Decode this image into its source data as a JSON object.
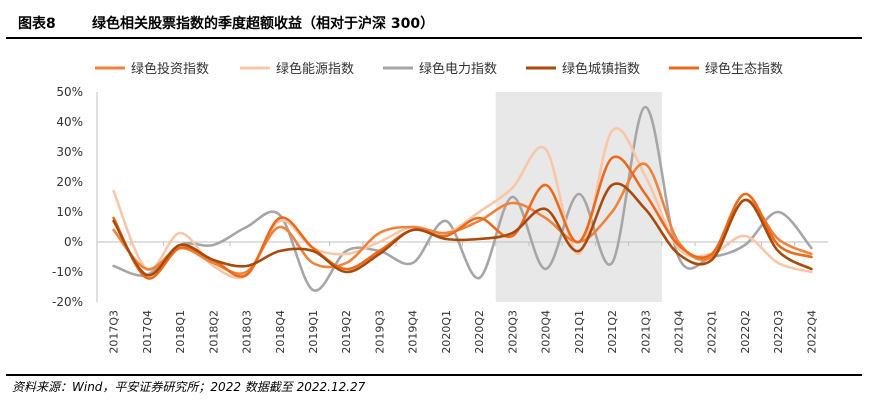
{
  "figure": {
    "number": "图表8",
    "title": "绿色相关股票指数的季度超额收益（相对于沪深 300）",
    "source": "资料来源：Wind，平安证券研究所；2022 数据截至 2022.12.27"
  },
  "chart_data": {
    "type": "line",
    "title": "",
    "xlabel": "",
    "ylabel": "",
    "ylim": [
      -20,
      50
    ],
    "y_ticks": [
      "50%",
      "40%",
      "30%",
      "20%",
      "10%",
      "0%",
      "-10%",
      "-20%"
    ],
    "y_tick_values": [
      50,
      40,
      30,
      20,
      10,
      0,
      -10,
      -20
    ],
    "x": [
      "2017Q3",
      "2017Q4",
      "2018Q1",
      "2018Q2",
      "2018Q3",
      "2018Q4",
      "2019Q1",
      "2019Q2",
      "2019Q3",
      "2019Q4",
      "2020Q1",
      "2020Q2",
      "2020Q3",
      "2020Q4",
      "2021Q1",
      "2021Q2",
      "2021Q3",
      "2021Q4",
      "2022Q1",
      "2022Q2",
      "2022Q3",
      "2022Q4"
    ],
    "grid": false,
    "legend_position": "top",
    "shaded_range": [
      "2020Q3",
      "2021Q3"
    ],
    "shade_color": "#e8e8e8",
    "series": [
      {
        "name": "绿色投资指数",
        "color": "#f0823c",
        "values": [
          4,
          -9,
          -2,
          -7,
          -10,
          5,
          -7,
          -7,
          3,
          5,
          3,
          7,
          13,
          8,
          0,
          10,
          26,
          0,
          -5,
          14,
          1,
          -4
        ]
      },
      {
        "name": "绿色能源指数",
        "color": "#f9c7a8",
        "values": [
          17,
          -9,
          3,
          -8,
          -11,
          7,
          -2,
          -4,
          0,
          5,
          3,
          10,
          18,
          31,
          -4,
          37,
          22,
          -2,
          -4,
          2,
          -7,
          -10
        ]
      },
      {
        "name": "绿色电力指数",
        "color": "#a6a6a6",
        "values": [
          -8,
          -11,
          -1,
          -1,
          5,
          9,
          -16,
          -3,
          -3,
          -7,
          7,
          -12,
          15,
          -9,
          16,
          -7,
          45,
          -5,
          -5,
          -1,
          10,
          -2
        ]
      },
      {
        "name": "绿色城镇指数",
        "color": "#a84a0c",
        "values": [
          7,
          -11,
          -1,
          -6,
          -8,
          -3,
          -3,
          -10,
          -4,
          4,
          1,
          1,
          3,
          11,
          -3,
          19,
          11,
          -4,
          -6,
          14,
          -3,
          -9
        ]
      },
      {
        "name": "绿色生态指数",
        "color": "#ec6a1c",
        "values": [
          8,
          -12,
          -2,
          -6,
          -11,
          8,
          -2,
          -9,
          -3,
          4,
          2,
          8,
          2,
          19,
          0,
          28,
          16,
          -1,
          -4,
          16,
          -1,
          -5
        ]
      }
    ]
  }
}
